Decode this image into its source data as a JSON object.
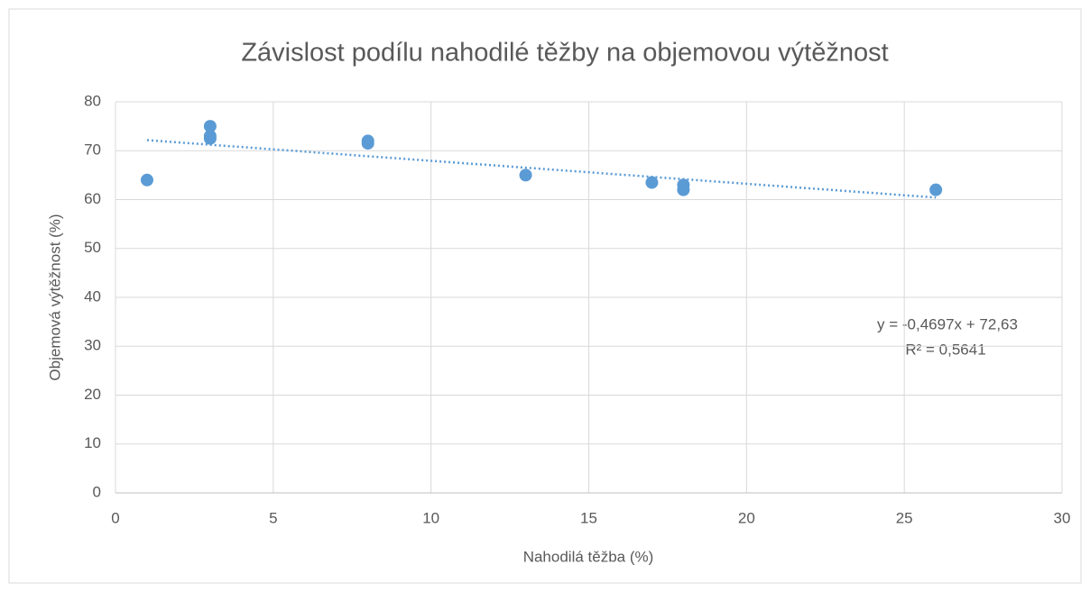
{
  "chart_data": {
    "type": "scatter",
    "title": "Závislost podílu nahodilé těžby na objemovou výtěžnost",
    "xlabel": "Nahodilá těžba (%)",
    "ylabel": "Objemová výtěžnost (%)",
    "series": [
      {
        "name": "Objemová výtěžnost (%)",
        "color": "#5b9bd5",
        "x": [
          1,
          3,
          3,
          3,
          8,
          8,
          13,
          17,
          18,
          18,
          26
        ],
        "values": [
          64,
          75,
          73,
          72.5,
          72,
          71.5,
          65,
          63.5,
          63,
          62,
          62
        ]
      }
    ],
    "trendline": {
      "slope": -0.4697,
      "intercept": 72.63,
      "xrange": [
        1,
        26
      ],
      "color": "#5b9bd5",
      "equation": "y = -0,4697x + 72,63",
      "r2": "R² = 0,5641"
    },
    "xlim": [
      0,
      30
    ],
    "xticks": [
      0,
      5,
      10,
      15,
      20,
      25,
      30
    ],
    "ylim": [
      0,
      80
    ],
    "yticks": [
      0,
      10,
      20,
      30,
      40,
      50,
      60,
      70,
      80
    ],
    "grid": true
  }
}
